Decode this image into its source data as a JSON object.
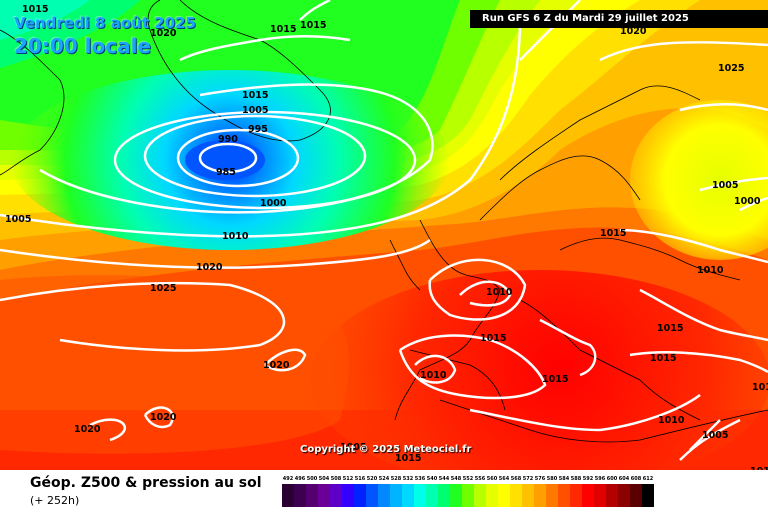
{
  "header": {
    "date_line": "Vendredi 8 août 2025",
    "time_line": "20:00 locale",
    "run_info": "Run GFS 6 Z du Mardi 29 juillet 2025"
  },
  "copyright": "Copyright © 2025 Meteociel.fr",
  "footer": {
    "title": "Géop. Z500 & pression au sol",
    "subtitle": "(+ 252h)"
  },
  "legend": {
    "labels": [
      "492",
      "496",
      "500",
      "504",
      "508",
      "512",
      "516",
      "520",
      "524",
      "528",
      "532",
      "536",
      "540",
      "544",
      "548",
      "552",
      "556",
      "560",
      "564",
      "568",
      "572",
      "576",
      "580",
      "584",
      "588",
      "592",
      "596",
      "600",
      "604",
      "608",
      "612"
    ],
    "colors": [
      "#2a0033",
      "#3d0050",
      "#55006e",
      "#6a0096",
      "#5e00c8",
      "#3300ff",
      "#0022ff",
      "#0055ff",
      "#0088ff",
      "#00b4ff",
      "#00d8ff",
      "#00ffe8",
      "#00ffb0",
      "#00ff70",
      "#20ff20",
      "#70ff00",
      "#b8ff00",
      "#e6ff00",
      "#ffff00",
      "#ffe000",
      "#ffc000",
      "#ffa000",
      "#ff7800",
      "#ff5000",
      "#ff2800",
      "#ff0000",
      "#e00000",
      "#b40000",
      "#8c0000",
      "#5a0000",
      "#000000"
    ]
  },
  "isobars": [
    "1015",
    "1015",
    "1020",
    "1020",
    "1025",
    "1015",
    "1005",
    "995",
    "990",
    "985",
    "1000",
    "1005",
    "1010",
    "1020",
    "1025",
    "1020",
    "1020",
    "1020",
    "1010",
    "1015",
    "1010",
    "1015",
    "1015",
    "1015",
    "1015",
    "1010",
    "1005",
    "1005",
    "1000",
    "1010",
    "1015",
    "1015",
    "1015",
    "1010",
    "1005"
  ]
}
